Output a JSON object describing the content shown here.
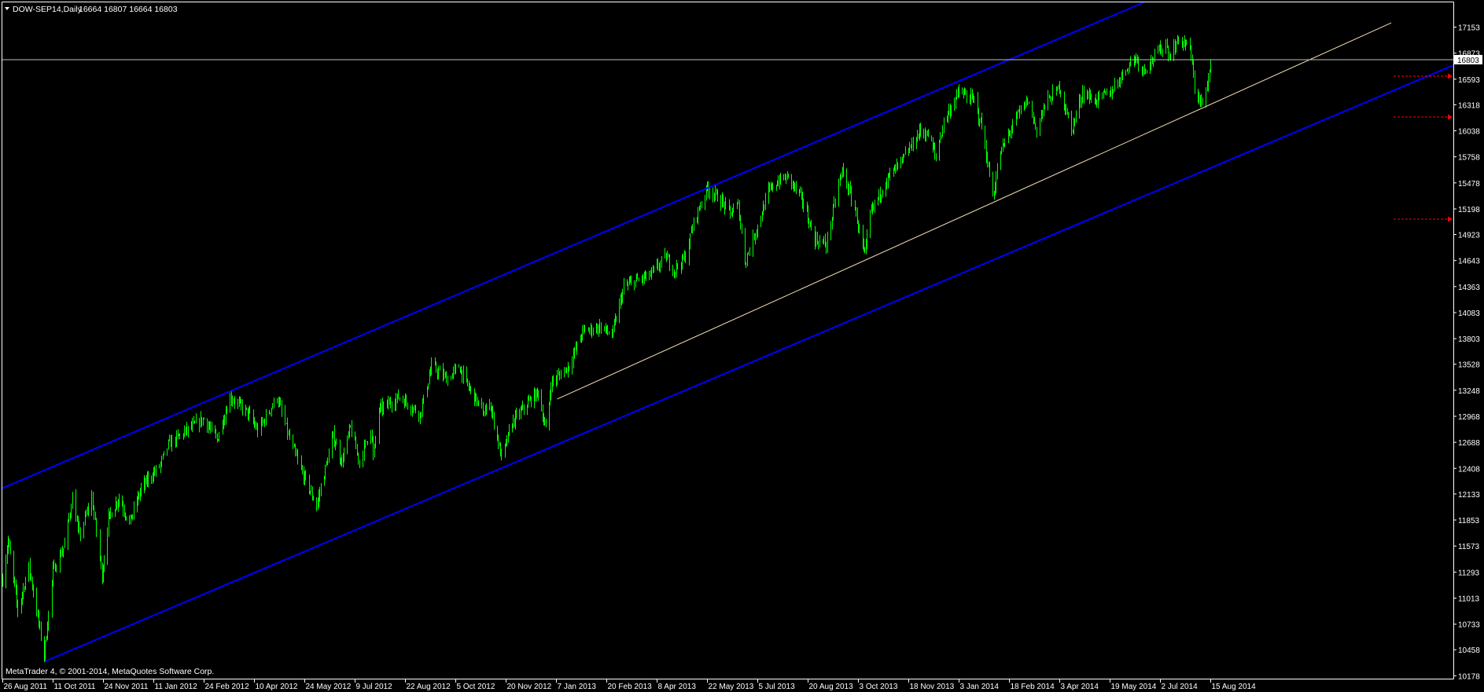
{
  "header": {
    "symbol_label": "DOW-SEP14,Daily",
    "ohlc_label": "16664 16807 16664 16803",
    "menu_icon": "triangle-down-icon"
  },
  "footer": {
    "copyright": "MetaTrader 4, © 2001-2014, MetaQuotes Software Corp."
  },
  "colors": {
    "background": "#000000",
    "bars": "#00ff00",
    "channel": "#0000ff",
    "trendline": "#f5deb3",
    "price_line": "#c0c0c0",
    "arrows": "#ff0000",
    "axis": "#ffffff"
  },
  "chart_data": {
    "type": "bar",
    "symbol": "DOW-SEP14",
    "timeframe": "Daily",
    "last": {
      "open": 16664,
      "high": 16807,
      "low": 16664,
      "close": 16803
    },
    "current_price_label": "16803",
    "ylim": [
      10178,
      17153
    ],
    "y_ticks": [
      "17153",
      "16873",
      "16593",
      "16318",
      "16038",
      "15758",
      "15478",
      "15198",
      "14923",
      "14643",
      "14363",
      "14083",
      "13803",
      "13528",
      "13248",
      "12968",
      "12688",
      "12408",
      "12133",
      "11853",
      "11573",
      "11293",
      "11013",
      "10733",
      "10458",
      "10178"
    ],
    "x_ticks": [
      {
        "date": "2011-08-26",
        "label": "26 Aug 2011"
      },
      {
        "date": "2011-10-11",
        "label": "11 Oct 2011"
      },
      {
        "date": "2011-11-24",
        "label": "24 Nov 2011"
      },
      {
        "date": "2012-01-11",
        "label": "11 Jan 2012"
      },
      {
        "date": "2012-02-24",
        "label": "24 Feb 2012"
      },
      {
        "date": "2012-04-10",
        "label": "10 Apr 2012"
      },
      {
        "date": "2012-05-24",
        "label": "24 May 2012"
      },
      {
        "date": "2012-07-09",
        "label": "9 Jul 2012"
      },
      {
        "date": "2012-08-22",
        "label": "22 Aug 2012"
      },
      {
        "date": "2012-10-05",
        "label": "5 Oct 2012"
      },
      {
        "date": "2012-11-20",
        "label": "20 Nov 2012"
      },
      {
        "date": "2013-01-07",
        "label": "7 Jan 2013"
      },
      {
        "date": "2013-02-20",
        "label": "20 Feb 2013"
      },
      {
        "date": "2013-04-08",
        "label": "8 Apr 2013"
      },
      {
        "date": "2013-05-22",
        "label": "22 May 2013"
      },
      {
        "date": "2013-07-05",
        "label": "5 Jul 2013"
      },
      {
        "date": "2013-08-20",
        "label": "20 Aug 2013"
      },
      {
        "date": "2013-10-03",
        "label": "3 Oct 2013"
      },
      {
        "date": "2013-11-18",
        "label": "18 Nov 2013"
      },
      {
        "date": "2014-01-03",
        "label": "3 Jan 2014"
      },
      {
        "date": "2014-02-18",
        "label": "18 Feb 2014"
      },
      {
        "date": "2014-04-03",
        "label": "3 Apr 2014"
      },
      {
        "date": "2014-05-19",
        "label": "19 May 2014"
      },
      {
        "date": "2014-07-02",
        "label": "2 Jul 2014"
      },
      {
        "date": "2014-08-15",
        "label": "15 Aug 2014"
      }
    ],
    "series": [
      {
        "points": [
          [
            "2011-08-26",
            11211
          ],
          [
            "2011-08-31",
            11633
          ],
          [
            "2011-09-09",
            10881
          ],
          [
            "2011-09-19",
            11354
          ],
          [
            "2011-10-03",
            10400
          ],
          [
            "2011-10-11",
            11303
          ],
          [
            "2011-10-21",
            11582
          ],
          [
            "2011-10-28",
            12097
          ],
          [
            "2011-11-03",
            11675
          ],
          [
            "2011-11-14",
            12097
          ],
          [
            "2011-11-23",
            11253
          ],
          [
            "2011-11-29",
            11869
          ],
          [
            "2011-12-09",
            12097
          ],
          [
            "2011-12-19",
            11819
          ],
          [
            "2011-12-30",
            12191
          ],
          [
            "2012-01-16",
            12427
          ],
          [
            "2012-01-24",
            12664
          ],
          [
            "2012-02-08",
            12807
          ],
          [
            "2012-02-24",
            12942
          ],
          [
            "2012-03-07",
            12714
          ],
          [
            "2012-03-19",
            13178
          ],
          [
            "2012-04-05",
            12993
          ],
          [
            "2012-04-13",
            12807
          ],
          [
            "2012-04-30",
            13178
          ],
          [
            "2012-05-10",
            12756
          ],
          [
            "2012-05-21",
            12385
          ],
          [
            "2012-06-04",
            12005
          ],
          [
            "2012-06-19",
            12756
          ],
          [
            "2012-06-27",
            12477
          ],
          [
            "2012-07-05",
            12849
          ],
          [
            "2012-07-13",
            12477
          ],
          [
            "2012-07-23",
            12849
          ],
          [
            "2012-07-25",
            12520
          ],
          [
            "2012-07-30",
            13035
          ],
          [
            "2012-08-17",
            13178
          ],
          [
            "2012-09-04",
            12993
          ],
          [
            "2012-09-14",
            13508
          ],
          [
            "2012-09-28",
            13365
          ],
          [
            "2012-10-08",
            13508
          ],
          [
            "2012-10-15",
            13322
          ],
          [
            "2012-10-31",
            12993
          ],
          [
            "2012-11-05",
            13128
          ],
          [
            "2012-11-16",
            12520
          ],
          [
            "2012-11-26",
            12900
          ],
          [
            "2012-12-12",
            13128
          ],
          [
            "2012-12-21",
            13229
          ],
          [
            "2012-12-28",
            12807
          ],
          [
            "2013-01-02",
            13322
          ],
          [
            "2013-01-18",
            13508
          ],
          [
            "2013-01-30",
            13880
          ],
          [
            "2013-02-15",
            13930
          ],
          [
            "2013-02-25",
            13837
          ],
          [
            "2013-03-08",
            14352
          ],
          [
            "2013-03-14",
            14395
          ],
          [
            "2013-04-02",
            14488
          ],
          [
            "2013-04-16",
            14682
          ],
          [
            "2013-04-23",
            14539
          ],
          [
            "2013-05-03",
            14682
          ],
          [
            "2013-05-10",
            15053
          ],
          [
            "2013-05-22",
            15425
          ],
          [
            "2013-06-03",
            15290
          ],
          [
            "2013-06-11",
            15146
          ],
          [
            "2013-06-18",
            15239
          ],
          [
            "2013-06-24",
            14631
          ],
          [
            "2013-07-02",
            14910
          ],
          [
            "2013-07-15",
            15383
          ],
          [
            "2013-07-24",
            15501
          ],
          [
            "2013-08-02",
            15543
          ],
          [
            "2013-08-15",
            15290
          ],
          [
            "2013-08-26",
            14868
          ],
          [
            "2013-09-05",
            14817
          ],
          [
            "2013-09-13",
            15290
          ],
          [
            "2013-09-19",
            15619
          ],
          [
            "2013-09-30",
            15197
          ],
          [
            "2013-10-09",
            14682
          ],
          [
            "2013-10-14",
            15146
          ],
          [
            "2013-10-29",
            15518
          ],
          [
            "2013-11-12",
            15712
          ],
          [
            "2013-11-29",
            16042
          ],
          [
            "2013-12-06",
            15991
          ],
          [
            "2013-12-13",
            15754
          ],
          [
            "2013-12-20",
            16136
          ],
          [
            "2014-01-03",
            16456
          ],
          [
            "2014-01-17",
            16363
          ],
          [
            "2014-01-24",
            16085
          ],
          [
            "2014-02-03",
            15333
          ],
          [
            "2014-02-10",
            15806
          ],
          [
            "2014-02-24",
            16178
          ],
          [
            "2014-03-06",
            16363
          ],
          [
            "2014-03-14",
            16042
          ],
          [
            "2014-03-21",
            16322
          ],
          [
            "2014-04-03",
            16507
          ],
          [
            "2014-04-14",
            16042
          ],
          [
            "2014-04-24",
            16456
          ],
          [
            "2014-05-05",
            16363
          ],
          [
            "2014-05-20",
            16456
          ],
          [
            "2014-05-30",
            16650
          ],
          [
            "2014-06-10",
            16836
          ],
          [
            "2014-06-17",
            16692
          ],
          [
            "2014-06-27",
            16836
          ],
          [
            "2014-07-07",
            16979
          ],
          [
            "2014-07-10",
            16836
          ],
          [
            "2014-07-18",
            17022
          ],
          [
            "2014-07-28",
            16929
          ],
          [
            "2014-08-01",
            16507
          ],
          [
            "2014-08-07",
            16322
          ],
          [
            "2014-08-11",
            16456
          ],
          [
            "2014-08-13",
            16557
          ],
          [
            "2014-08-15",
            16803
          ]
        ]
      }
    ],
    "trendlines": [
      {
        "name": "upper-channel",
        "color": "#0000ff",
        "from": [
          "2011-08-26",
          12195
        ],
        "through": [
          "2014-06-18",
          17419
        ],
        "ray": true
      },
      {
        "name": "lower-channel",
        "color": "#0000ff",
        "from": [
          "2011-10-04",
          10333
        ],
        "through": [
          "2013-02-27",
          12922
        ],
        "ray": true
      },
      {
        "name": "support-line",
        "color": "#f5deb3",
        "from": [
          "2013-01-08",
          13153
        ],
        "through": [
          "2014-02-03",
          15265
        ],
        "to_price": 17199,
        "ray": false
      }
    ],
    "horizontal_line": 16803,
    "arrow_levels": [
      16625,
      16186,
      15088
    ],
    "grid": false
  }
}
